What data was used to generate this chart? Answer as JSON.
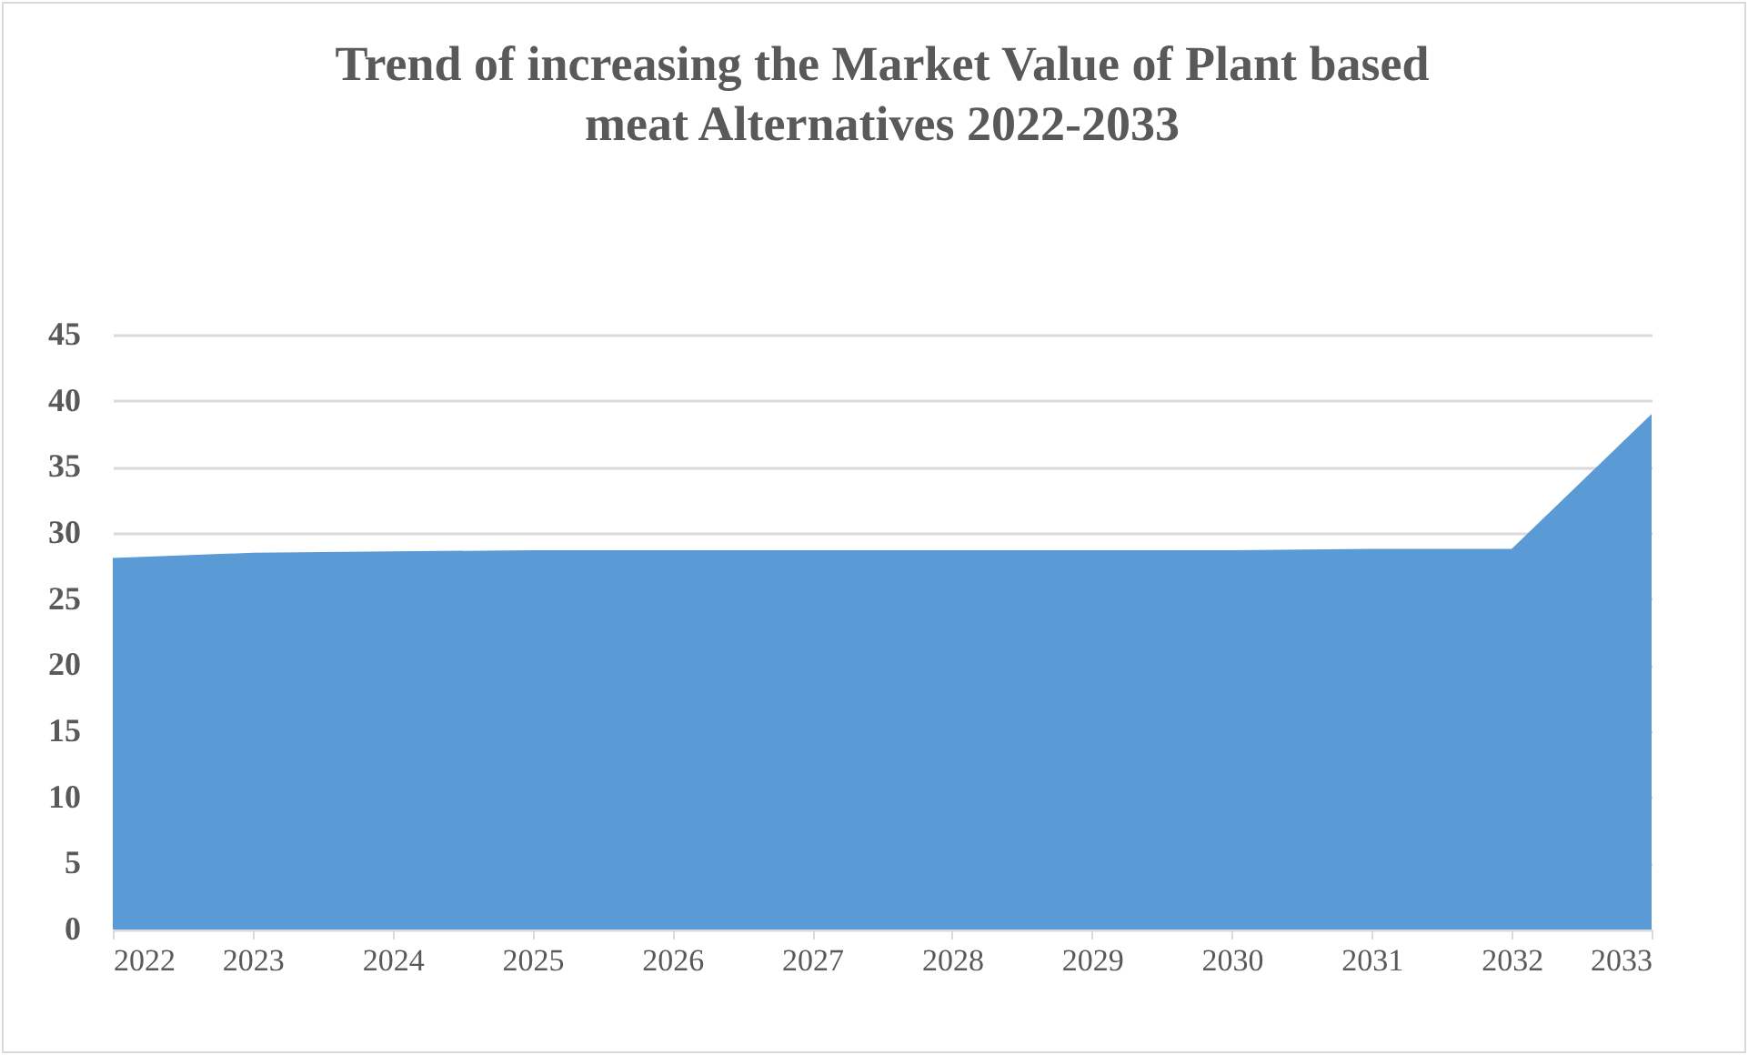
{
  "chart_data": {
    "type": "area",
    "title": "Trend of increasing the Market Value of Plant based meat Alternatives 2022-2033",
    "categories": [
      "2022",
      "2023",
      "2024",
      "2025",
      "2026",
      "2027",
      "2028",
      "2029",
      "2030",
      "2031",
      "2032",
      "2033"
    ],
    "series": [
      {
        "color": "#5b9bd5",
        "values": [
          28.1,
          28.5,
          28.6,
          28.7,
          28.7,
          28.7,
          28.7,
          28.7,
          28.7,
          28.8,
          28.8,
          39.0
        ]
      }
    ],
    "ylim": [
      0,
      45
    ],
    "yticks": [
      0,
      5,
      10,
      15,
      20,
      25,
      30,
      35,
      40,
      45
    ],
    "grid": "y"
  }
}
